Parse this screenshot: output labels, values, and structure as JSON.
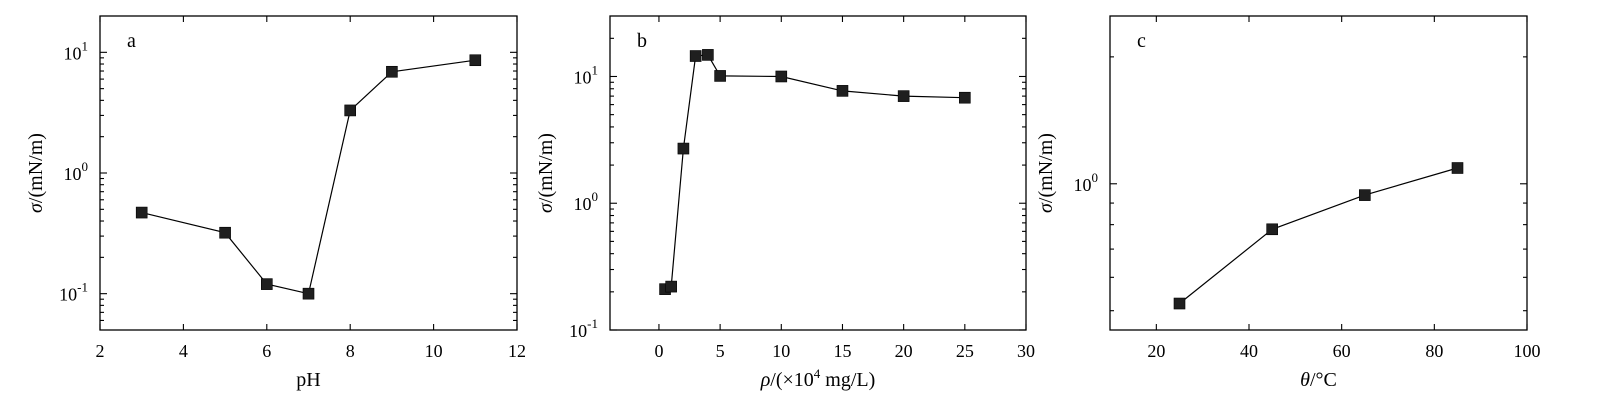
{
  "chart_data": [
    {
      "type": "line",
      "panel_label": "a",
      "xlabel": "pH",
      "ylabel_symbol": "σ",
      "ylabel_unit": "/(mN/m)",
      "yscale": "log",
      "xlim": [
        2,
        12
      ],
      "ylim": [
        0.05,
        20
      ],
      "x_ticks": [
        2,
        4,
        6,
        8,
        10,
        12
      ],
      "y_ticks": [
        {
          "value": 0.1,
          "base": "10",
          "exp": "-1"
        },
        {
          "value": 1,
          "base": "10",
          "exp": "0"
        },
        {
          "value": 10,
          "base": "10",
          "exp": "1"
        }
      ],
      "grid": false,
      "series": [
        {
          "marker": "square",
          "x": [
            3,
            5,
            6,
            7,
            8,
            9,
            11
          ],
          "y": [
            0.47,
            0.32,
            0.12,
            0.1,
            3.3,
            6.9,
            8.6
          ]
        }
      ]
    },
    {
      "type": "line",
      "panel_label": "b",
      "xlabel_symbol": "ρ",
      "xlabel_pre": "/(×10",
      "xlabel_sup": "4",
      "xlabel_post": " mg/L)",
      "ylabel_symbol": "σ",
      "ylabel_unit": "/(mN/m)",
      "yscale": "log",
      "xlim": [
        -4,
        30
      ],
      "ylim": [
        0.1,
        30
      ],
      "x_ticks": [
        0,
        5,
        10,
        15,
        20,
        25,
        30
      ],
      "y_ticks": [
        {
          "value": 0.1,
          "base": "10",
          "exp": "-1"
        },
        {
          "value": 1,
          "base": "10",
          "exp": "0"
        },
        {
          "value": 10,
          "base": "10",
          "exp": "1"
        }
      ],
      "grid": false,
      "series": [
        {
          "marker": "square",
          "x": [
            0.5,
            1,
            2,
            3,
            4,
            5,
            10,
            15,
            20,
            25
          ],
          "y": [
            0.21,
            0.22,
            2.7,
            14.5,
            14.8,
            10.1,
            10.0,
            7.7,
            7.0,
            6.8
          ]
        }
      ]
    },
    {
      "type": "line",
      "panel_label": "c",
      "xlabel_symbol": "θ",
      "xlabel_unit": "/°C",
      "ylabel_symbol": "σ",
      "ylabel_unit": "/(mN/m)",
      "yscale": "log",
      "xlim": [
        10,
        100
      ],
      "ylim": [
        0.45,
        2.5
      ],
      "x_ticks": [
        20,
        40,
        60,
        80,
        100
      ],
      "y_ticks": [
        {
          "value": 1,
          "base": "10",
          "exp": "0"
        }
      ],
      "grid": false,
      "series": [
        {
          "marker": "square",
          "x": [
            25,
            45,
            65,
            85
          ],
          "y": [
            0.52,
            0.78,
            0.94,
            1.09
          ]
        }
      ]
    }
  ]
}
